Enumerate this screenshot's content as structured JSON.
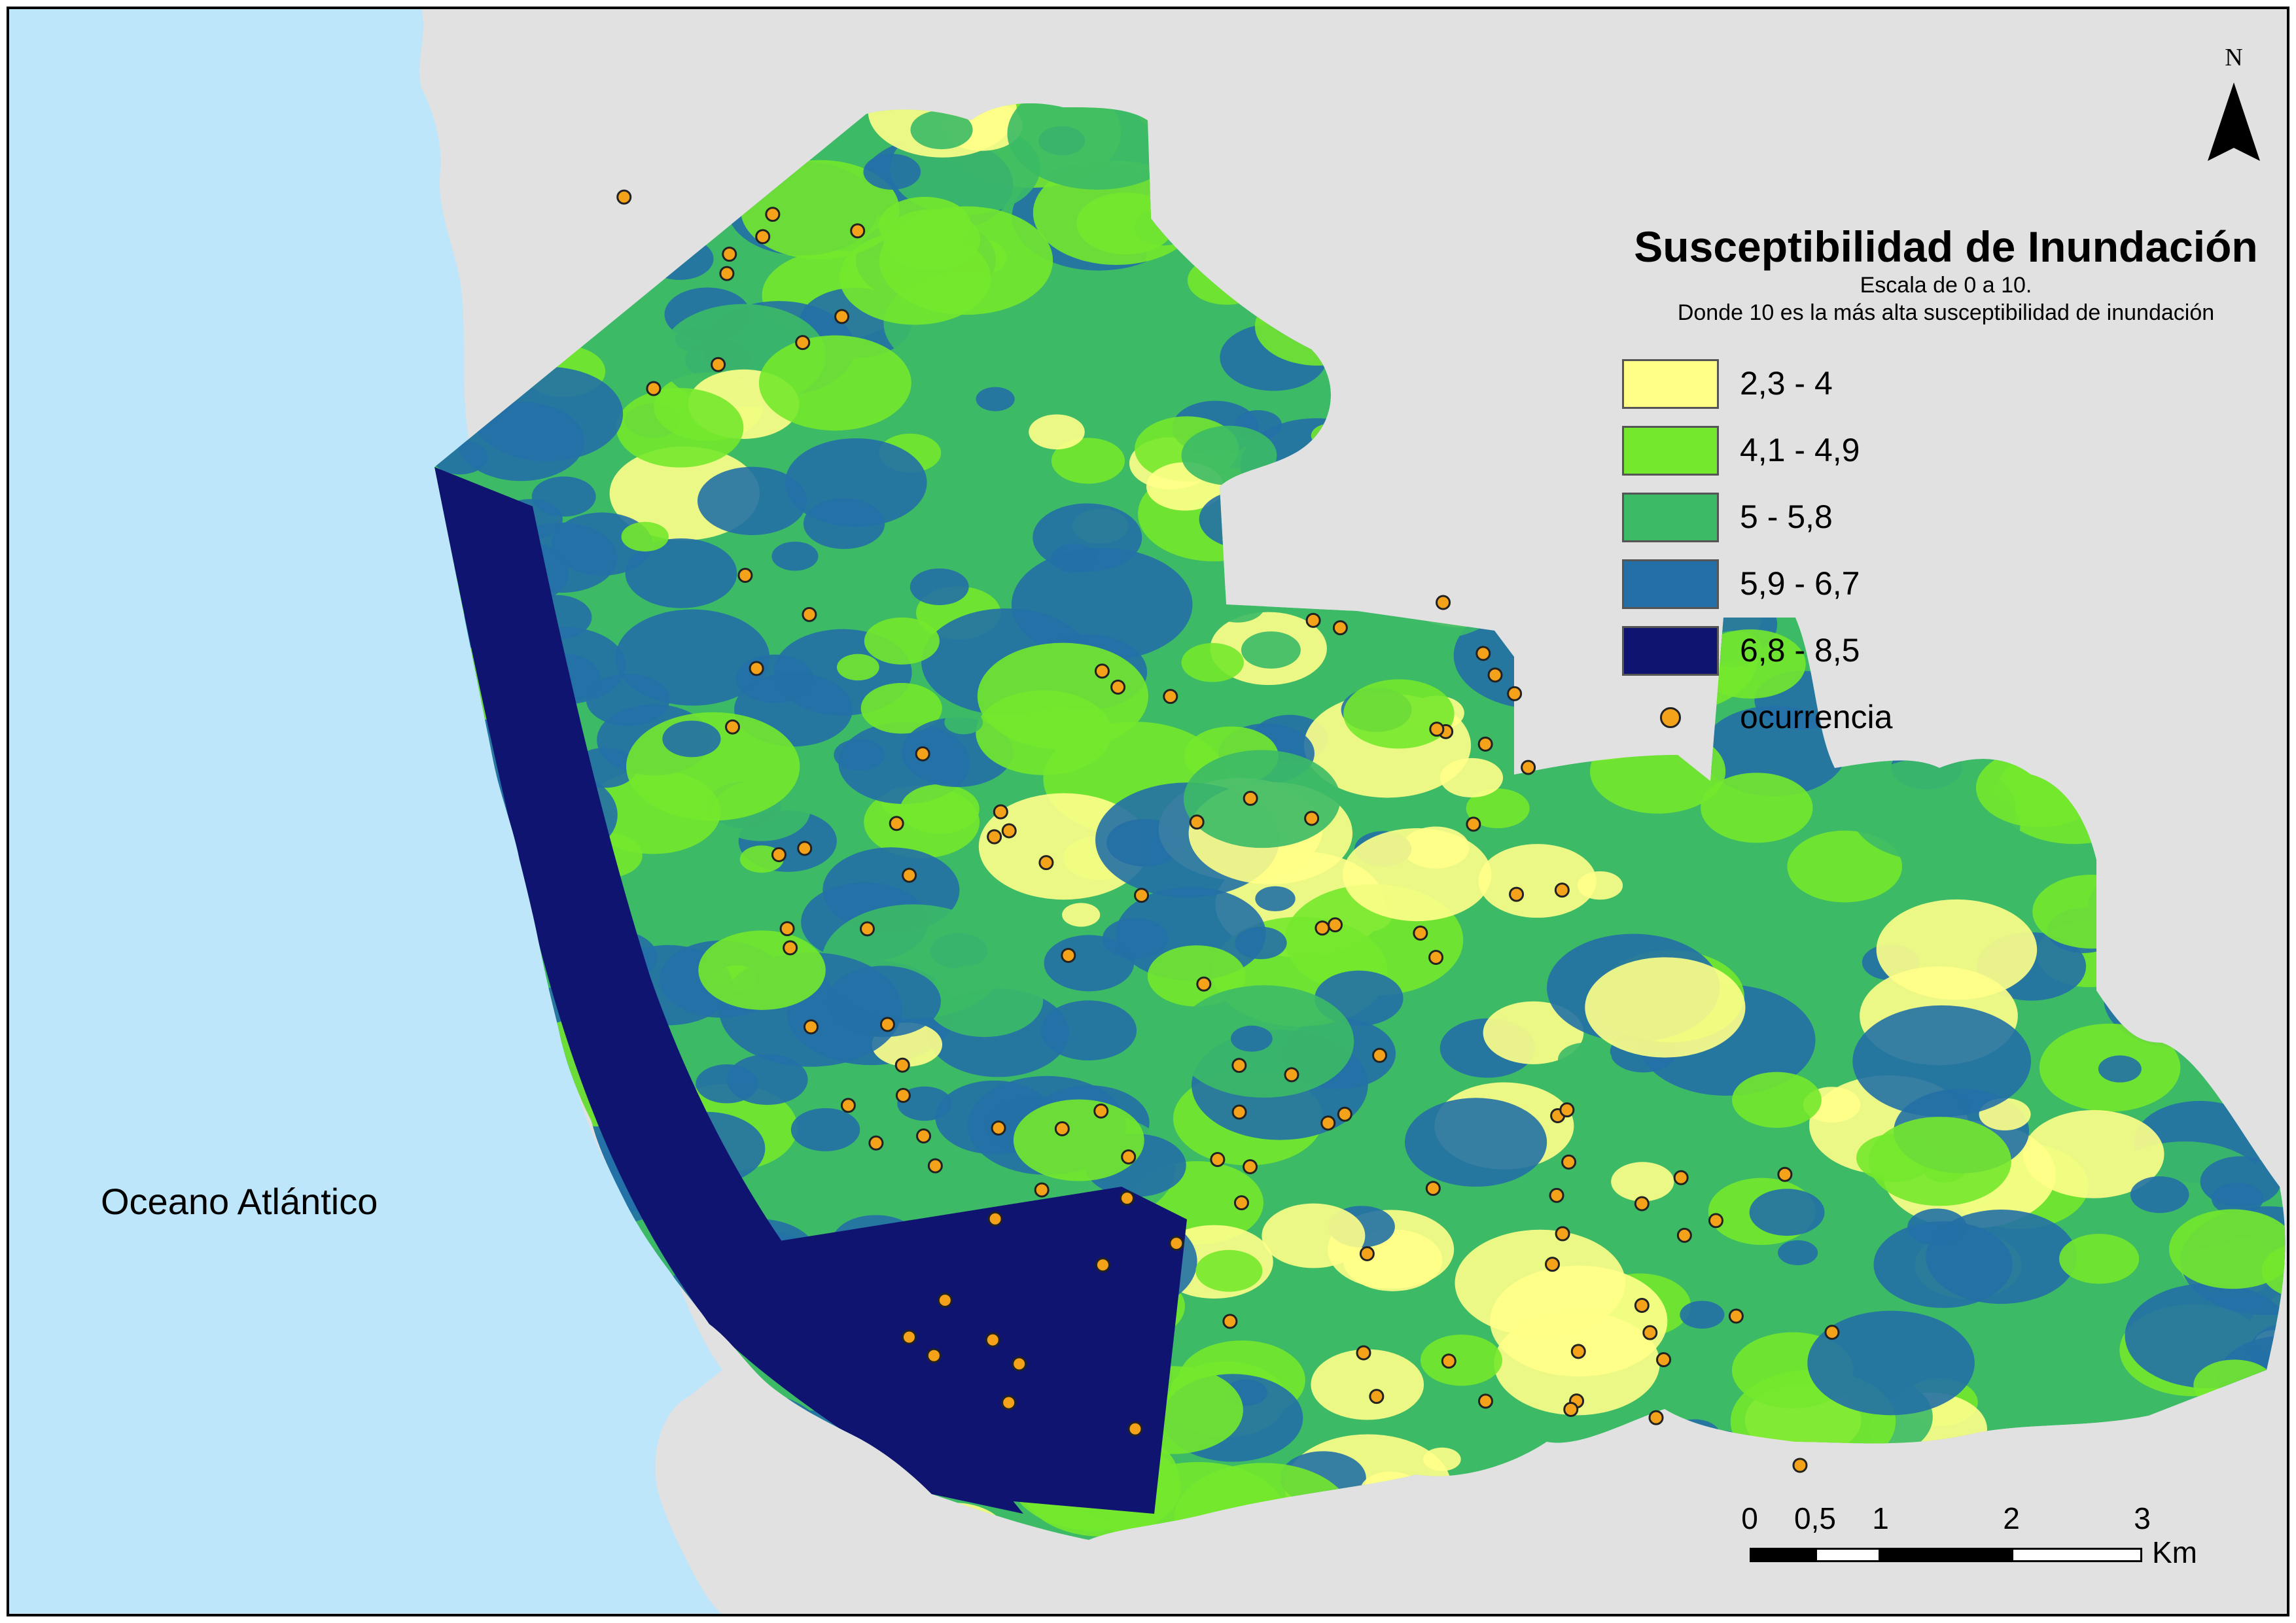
{
  "map": {
    "ocean_label": "Oceano Atlántico",
    "colors": {
      "ocean": "#bde6fb",
      "land_outside": "#e1e1e1",
      "class_1": "#ffff88",
      "class_2": "#74e82c",
      "class_3": "#3cba66",
      "class_4": "#2470a6",
      "class_5": "#0f1470",
      "occurrence": "#f5a21b"
    }
  },
  "north_arrow": {
    "letter": "N",
    "icon": "north-arrow-icon"
  },
  "legend": {
    "title": "Susceptibilidad de Inundación",
    "subtitle_1": "Escala de 0 a 10.",
    "subtitle_2": "Donde 10 es la más alta susceptibilidad de inundación",
    "items": [
      {
        "label": "2,3 - 4",
        "color": "#ffff88"
      },
      {
        "label": "4,1 - 4,9",
        "color": "#74e82c"
      },
      {
        "label": "5 - 5,8",
        "color": "#3cba66"
      },
      {
        "label": "5,9 - 6,7",
        "color": "#2470a6"
      },
      {
        "label": "6,8 - 8,5",
        "color": "#0f1470"
      }
    ],
    "occurrence_label": "ocurrencia"
  },
  "scale_bar": {
    "ticks": [
      "0",
      "0,5",
      "1",
      "2",
      "3"
    ],
    "tick_values_km": [
      0,
      0.5,
      1,
      2,
      3
    ],
    "unit": "Km"
  }
}
